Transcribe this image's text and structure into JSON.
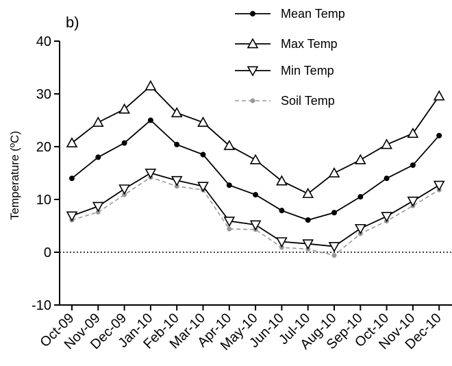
{
  "chart_data": {
    "type": "line",
    "panel_label": "b)",
    "title": "",
    "xlabel": "",
    "ylabel": "Temperature (ºC)",
    "ylim": [
      -10,
      40
    ],
    "yticks": [
      "-10",
      "0",
      "10",
      "20",
      "30",
      "40"
    ],
    "categories": [
      "Oct-09",
      "Nov-09",
      "Dec-09",
      "Jan-10",
      "Feb-10",
      "Mar-10",
      "Apr-10",
      "May-10",
      "Jun-10",
      "Jul-10",
      "Aug-10",
      "Sep-10",
      "Oct-10",
      "Nov-10",
      "Dec-10"
    ],
    "reference_line": {
      "y": 0,
      "style": "dotted"
    },
    "legend_position": "top-right",
    "grid": false,
    "series": [
      {
        "name": "Mean Temp",
        "marker": "filled-circle",
        "line": "solid",
        "color": "#000000",
        "values": [
          14.0,
          18.0,
          20.7,
          25.0,
          20.4,
          18.5,
          12.7,
          10.9,
          7.9,
          6.1,
          7.5,
          10.5,
          14.0,
          16.5,
          22.1
        ]
      },
      {
        "name": "Max Temp",
        "marker": "open-triangle-up",
        "line": "solid",
        "color": "#000000",
        "values": [
          20.7,
          24.6,
          27.1,
          31.5,
          26.4,
          24.6,
          20.2,
          17.5,
          13.5,
          11.1,
          15.0,
          17.5,
          20.4,
          22.5,
          29.6
        ]
      },
      {
        "name": "Min Temp",
        "marker": "open-triangle-down",
        "line": "solid",
        "color": "#000000",
        "values": [
          6.9,
          8.7,
          12.0,
          15.0,
          13.6,
          12.5,
          5.9,
          5.2,
          2.0,
          1.6,
          1.1,
          4.5,
          6.8,
          9.7,
          12.7
        ]
      },
      {
        "name": "Soil Temp",
        "marker": "small-filled-circle",
        "line": "dashed",
        "color": "#999999",
        "values": [
          6.1,
          7.6,
          10.9,
          14.2,
          12.5,
          11.8,
          4.4,
          4.3,
          0.9,
          0.6,
          -0.6,
          3.5,
          5.9,
          8.8,
          11.8
        ]
      }
    ]
  }
}
